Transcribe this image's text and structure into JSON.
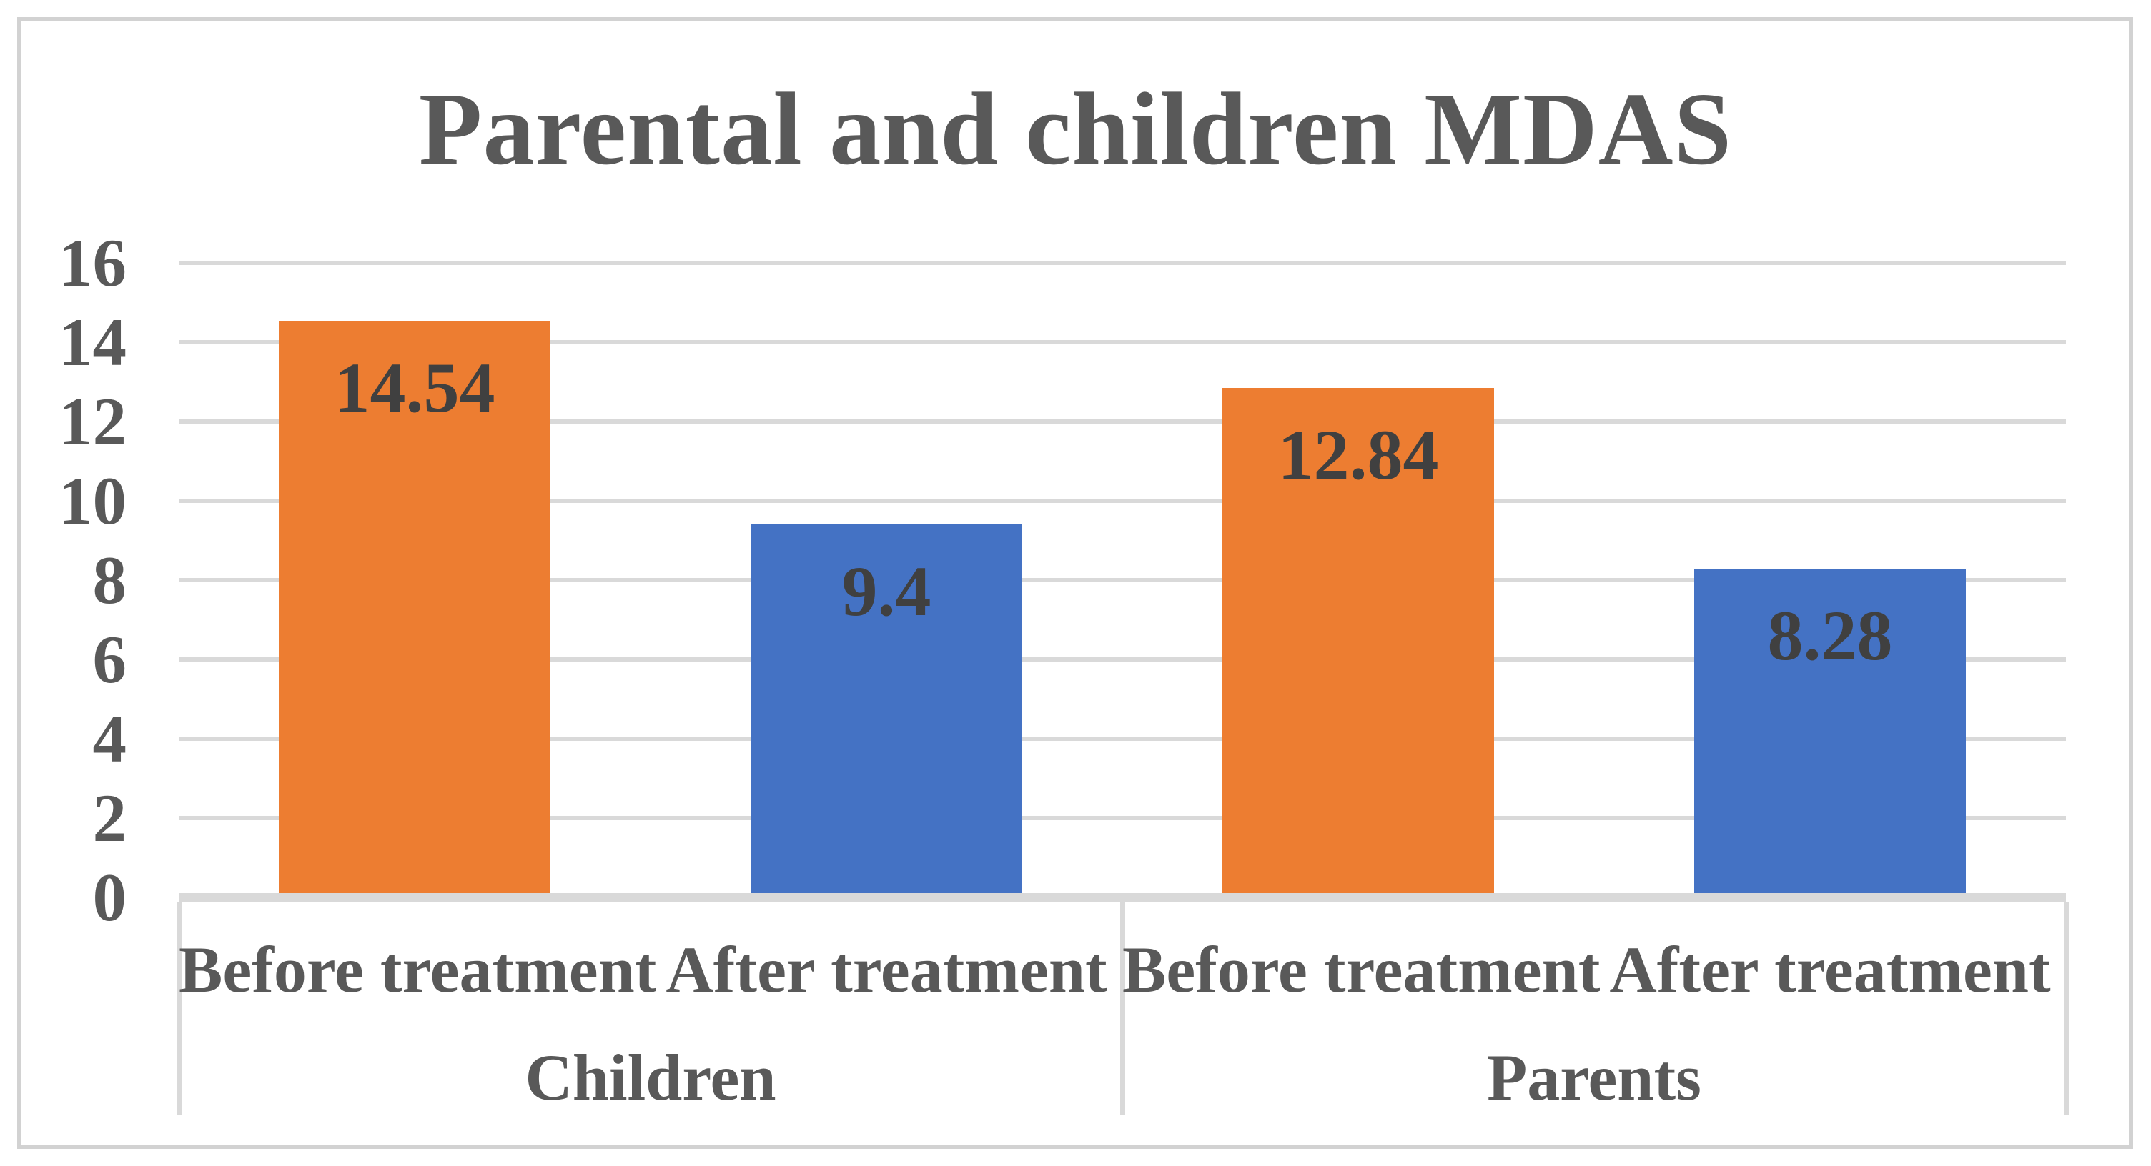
{
  "chart_data": {
    "type": "bar",
    "title": "Parental and children MDAS",
    "y_axis": {
      "min": 0,
      "max": 16,
      "tick_step": 2,
      "ticks": [
        0,
        2,
        4,
        6,
        8,
        10,
        12,
        14,
        16
      ]
    },
    "grid": true,
    "legend_position": "none",
    "data_label_position": "inside-end",
    "categories": [
      "Children",
      "Parents"
    ],
    "groups": [
      {
        "label": "Children",
        "bars": [
          {
            "label": "Before treatment",
            "value": 14.54,
            "value_label": "14.54",
            "color_key": "orange"
          },
          {
            "label": "After treatment",
            "value": 9.4,
            "value_label": "9.4",
            "color_key": "blue"
          }
        ]
      },
      {
        "label": "Parents",
        "bars": [
          {
            "label": "Before treatment",
            "value": 12.84,
            "value_label": "12.84",
            "color_key": "orange"
          },
          {
            "label": "After treatment",
            "value": 8.28,
            "value_label": "8.28",
            "color_key": "blue"
          }
        ]
      }
    ]
  },
  "colors": {
    "orange": "#ED7D31",
    "blue": "#4472C4",
    "gridline": "#D9D9D9",
    "axis_line": "#D9D9D9",
    "frame_border": "#D2D2D2",
    "title_text": "#595959",
    "axis_text": "#595959",
    "data_label_text": "#404040"
  }
}
